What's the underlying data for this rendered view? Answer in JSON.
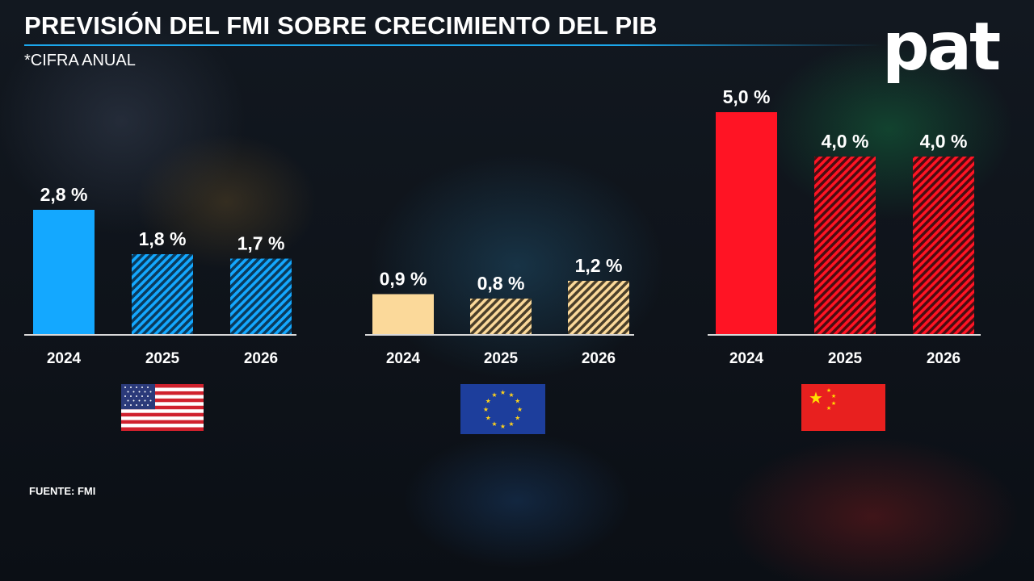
{
  "title": "PREVISIÓN DEL FMI SOBRE CRECIMIENTO DEL PIB",
  "subtitle": "*CIFRA ANUAL",
  "source": "FUENTE: FMI",
  "logo_text": "pat",
  "colors": {
    "accent_rule": "#1ca7ec",
    "us": "#14a8ff",
    "eu": "#fbd99a",
    "cn": "#ff1424"
  },
  "flags": [
    {
      "name": "us-flag-icon",
      "country": "Estados Unidos"
    },
    {
      "name": "eu-flag-icon",
      "country": "Unión Europea"
    },
    {
      "name": "cn-flag-icon",
      "country": "China"
    }
  ],
  "chart_data": [
    {
      "type": "bar",
      "region": "Estados Unidos",
      "color_key": "us",
      "categories": [
        "2024",
        "2025",
        "2026"
      ],
      "values": [
        2.8,
        1.8,
        1.7
      ],
      "labels": [
        "2,8 %",
        "1,8 %",
        "1,7 %"
      ],
      "forecast": [
        false,
        true,
        true
      ],
      "ylim": [
        0,
        5
      ]
    },
    {
      "type": "bar",
      "region": "Unión Europea",
      "color_key": "eu",
      "categories": [
        "2024",
        "2025",
        "2026"
      ],
      "values": [
        0.9,
        0.8,
        1.2
      ],
      "labels": [
        "0,9 %",
        "0,8 %",
        "1,2 %"
      ],
      "forecast": [
        false,
        true,
        true
      ],
      "ylim": [
        0,
        5
      ]
    },
    {
      "type": "bar",
      "region": "China",
      "color_key": "cn",
      "categories": [
        "2024",
        "2025",
        "2026"
      ],
      "values": [
        5.0,
        4.0,
        4.0
      ],
      "labels": [
        "5,0 %",
        "4,0 %",
        "4,0 %"
      ],
      "forecast": [
        false,
        true,
        true
      ],
      "ylim": [
        0,
        5
      ]
    }
  ]
}
